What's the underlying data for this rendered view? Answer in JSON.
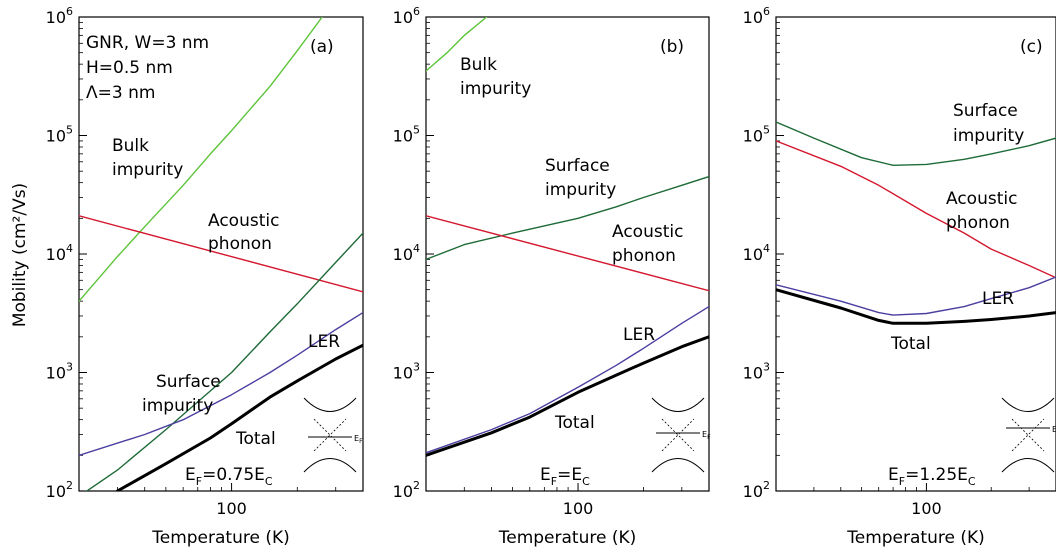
{
  "colors": {
    "bulk": "#5cc43a",
    "surface": "#1e6b38",
    "acoustic": "#d4182e",
    "ler": "#4a3fa0",
    "total": "#000000"
  },
  "common": {
    "ylabel": "Mobility (cm²/Vs)",
    "xlabel": "Temperature (K)",
    "x_tick_label": "100",
    "y_ticks": [
      {
        "base": "10",
        "exp": "2"
      },
      {
        "base": "10",
        "exp": "3"
      },
      {
        "base": "10",
        "exp": "4"
      },
      {
        "base": "10",
        "exp": "5"
      },
      {
        "base": "10",
        "exp": "6"
      }
    ]
  },
  "chart_data": [
    {
      "type": "line",
      "panel_label": "(a)",
      "params": [
        "GNR, W=3 nm",
        "H=0.5 nm",
        "Λ=3 nm"
      ],
      "ef_label": {
        "prefix": "E",
        "sub": "F",
        "rest": "=0.75E",
        "sub2": "C"
      },
      "xlim": [
        20,
        400
      ],
      "ylim": [
        100,
        1000000
      ],
      "xscale": "log",
      "yscale": "log",
      "xlabel": "Temperature (K)",
      "ylabel": "Mobility (cm²/Vs)",
      "labels": {
        "bulk": [
          "Bulk",
          "impurity"
        ],
        "acoustic": [
          "Acoustic",
          "phonon"
        ],
        "surface": [
          "Surface",
          "impurity"
        ],
        "ler": [
          "LER"
        ],
        "total": [
          "Total"
        ]
      },
      "series": [
        {
          "key": "bulk",
          "x": [
            20,
            30,
            40,
            60,
            80,
            100,
            150,
            200,
            260
          ],
          "y": [
            4000,
            9500,
            17000,
            38000,
            70000,
            110000,
            260000,
            520000,
            1000000
          ]
        },
        {
          "key": "acoustic",
          "x": [
            20,
            400
          ],
          "y": [
            21000,
            4800
          ]
        },
        {
          "key": "surface",
          "x": [
            20,
            30,
            50,
            80,
            100,
            150,
            200,
            300,
            400
          ],
          "y": [
            90,
            150,
            330,
            700,
            1000,
            2200,
            3800,
            8500,
            15000
          ]
        },
        {
          "key": "ler",
          "x": [
            20,
            40,
            60,
            100,
            150,
            200,
            300,
            400
          ],
          "y": [
            200,
            300,
            400,
            650,
            1000,
            1400,
            2300,
            3200
          ]
        },
        {
          "key": "total",
          "x": [
            30,
            50,
            80,
            100,
            150,
            200,
            300,
            400
          ],
          "y": [
            100,
            170,
            280,
            370,
            620,
            850,
            1300,
            1700
          ]
        }
      ]
    },
    {
      "type": "line",
      "panel_label": "(b)",
      "ef_label": {
        "prefix": "E",
        "sub": "F",
        "rest": "=E",
        "sub2": "C"
      },
      "xlim": [
        20,
        400
      ],
      "ylim": [
        100,
        1000000
      ],
      "xscale": "log",
      "yscale": "log",
      "xlabel": "Temperature (K)",
      "labels": {
        "bulk": [
          "Bulk",
          "impurity"
        ],
        "surface": [
          "Surface",
          "impurity"
        ],
        "acoustic": [
          "Acoustic",
          "phonon"
        ],
        "ler": [
          "LER"
        ],
        "total": [
          "Total"
        ]
      },
      "series": [
        {
          "key": "bulk",
          "x": [
            20,
            25,
            30,
            38
          ],
          "y": [
            350000,
            500000,
            700000,
            1000000
          ]
        },
        {
          "key": "surface",
          "x": [
            20,
            30,
            50,
            100,
            150,
            200,
            300,
            400
          ],
          "y": [
            9000,
            12000,
            15000,
            20000,
            25000,
            30000,
            38000,
            45000
          ]
        },
        {
          "key": "acoustic",
          "x": [
            20,
            400
          ],
          "y": [
            21000,
            4900
          ]
        },
        {
          "key": "ler",
          "x": [
            20,
            40,
            60,
            100,
            150,
            200,
            300,
            400
          ],
          "y": [
            210,
            330,
            450,
            750,
            1150,
            1600,
            2600,
            3600
          ]
        },
        {
          "key": "total",
          "x": [
            20,
            40,
            60,
            100,
            150,
            200,
            300,
            400
          ],
          "y": [
            200,
            310,
            420,
            680,
            950,
            1200,
            1650,
            2000
          ]
        }
      ]
    },
    {
      "type": "line",
      "panel_label": "(c)",
      "ef_label": {
        "prefix": "E",
        "sub": "F",
        "rest": "=1.25E",
        "sub2": "C"
      },
      "xlim": [
        20,
        400
      ],
      "ylim": [
        100,
        1000000
      ],
      "xscale": "log",
      "yscale": "log",
      "xlabel": "Temperature (K)",
      "labels": {
        "surface": [
          "Surface",
          "impurity"
        ],
        "acoustic": [
          "Acoustic",
          "phonon"
        ],
        "ler": [
          "LER"
        ],
        "total": [
          "Total"
        ]
      },
      "series": [
        {
          "key": "surface",
          "x": [
            20,
            30,
            50,
            70,
            100,
            150,
            200,
            300,
            400
          ],
          "y": [
            130000,
            95000,
            65000,
            56000,
            57000,
            63000,
            70000,
            82000,
            95000
          ]
        },
        {
          "key": "acoustic",
          "x": [
            20,
            40,
            60,
            100,
            150,
            200,
            300,
            400
          ],
          "y": [
            90000,
            55000,
            38000,
            22000,
            15000,
            11000,
            8000,
            6300
          ]
        },
        {
          "key": "ler",
          "x": [
            20,
            40,
            60,
            70,
            100,
            150,
            200,
            300,
            400
          ],
          "y": [
            5500,
            4000,
            3200,
            3050,
            3150,
            3600,
            4200,
            5200,
            6400
          ]
        },
        {
          "key": "total",
          "x": [
            20,
            40,
            60,
            70,
            100,
            150,
            200,
            300,
            400
          ],
          "y": [
            5000,
            3500,
            2750,
            2600,
            2600,
            2700,
            2800,
            3000,
            3200
          ]
        }
      ]
    }
  ]
}
